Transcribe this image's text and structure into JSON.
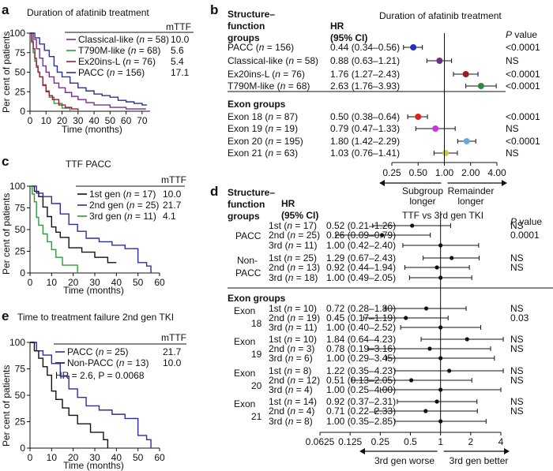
{
  "chart_data": [
    {
      "panel": "a",
      "type": "line",
      "title": "Duration of afatinib treatment",
      "xlabel": "Time (months)",
      "ylabel": "Per cent of patients",
      "xlim": [
        0,
        75
      ],
      "ylim": [
        0,
        100
      ],
      "xticks": [
        "0",
        "10",
        "20",
        "30",
        "40",
        "50",
        "60",
        "70"
      ],
      "yticks": [
        "0",
        "25",
        "50",
        "75",
        "100"
      ],
      "legend_header": "mTTF",
      "series": [
        {
          "name": "Classical-like",
          "n": "n = 58",
          "mttf": "10.0",
          "color": "#7b2d8e",
          "x": [
            0,
            2,
            4,
            6,
            8,
            10,
            12,
            15,
            18,
            22,
            26,
            30,
            35,
            40,
            50,
            60,
            72
          ],
          "y": [
            100,
            92,
            80,
            68,
            58,
            50,
            44,
            36,
            30,
            24,
            19,
            15,
            11,
            8,
            5,
            3,
            2
          ]
        },
        {
          "name": "T790M-like",
          "n": "n = 68",
          "mttf": "5.6",
          "color": "#2e9a3c",
          "x": [
            0,
            1,
            2,
            3,
            4,
            5,
            6,
            8,
            10,
            12,
            15,
            20,
            25
          ],
          "y": [
            100,
            88,
            75,
            64,
            56,
            50,
            44,
            34,
            26,
            18,
            10,
            4,
            0
          ]
        },
        {
          "name": "Ex20ins-L",
          "n": "n = 76",
          "mttf": "5.4",
          "color": "#9b1c3a",
          "x": [
            0,
            1,
            2,
            3,
            4,
            5,
            6,
            8,
            10,
            12,
            14,
            18,
            22,
            26,
            30
          ],
          "y": [
            100,
            90,
            80,
            68,
            58,
            50,
            44,
            33,
            25,
            20,
            15,
            8,
            5,
            3,
            1
          ]
        },
        {
          "name": "PACC",
          "n": "n = 156",
          "mttf": "17.1",
          "color": "#2b2f9c",
          "x": [
            0,
            3,
            6,
            9,
            12,
            15,
            17,
            20,
            25,
            30,
            35,
            40,
            45,
            50,
            55,
            60,
            65,
            70,
            73
          ],
          "y": [
            100,
            94,
            86,
            78,
            70,
            58,
            50,
            44,
            36,
            30,
            26,
            22,
            20,
            18,
            14,
            12,
            10,
            8,
            8
          ]
        }
      ]
    },
    {
      "panel": "b",
      "type": "forest",
      "title": "Duration of afatinib treatment",
      "col_group": "Structure–function groups",
      "col_hr": "HR (95% CI)",
      "col_p": "P value",
      "xscale": "log2",
      "xticks": [
        "0.25",
        "0.50",
        "1.00",
        "2.00",
        "4.00"
      ],
      "arrow_left": "Subgroup longer",
      "arrow_right": "Remainder longer",
      "section2": "Exon groups",
      "rows": [
        {
          "label": "PACC (n = 156)",
          "hr": "0.44 (0.34–0.56)",
          "p": "<0.0001",
          "est": 0.44,
          "lo": 0.34,
          "hi": 0.56,
          "color": "#2233bb"
        },
        {
          "label": "Classical-like (n = 58)",
          "hr": "0.88 (0.63–1.21)",
          "p": "NS",
          "est": 0.88,
          "lo": 0.63,
          "hi": 1.21,
          "color": "#6b2d8e"
        },
        {
          "label": "Ex20ins-L (n = 76)",
          "hr": "1.76 (1.27–2.43)",
          "p": "<0.0001",
          "est": 1.76,
          "lo": 1.27,
          "hi": 2.43,
          "color": "#9b1c1c"
        },
        {
          "label": "T790M-like (n = 68)",
          "hr": "2.63 (1.76–3.93)",
          "p": "<0.0001",
          "est": 2.63,
          "lo": 1.76,
          "hi": 3.93,
          "color": "#2e8b3c"
        },
        {
          "label": "Exon 18 (n = 87)",
          "hr": "0.50 (0.38–0.64)",
          "p": "<0.0001",
          "est": 0.5,
          "lo": 0.38,
          "hi": 0.64,
          "color": "#dd2222"
        },
        {
          "label": "Exon 19 (n = 19)",
          "hr": "0.79 (0.47–1.33)",
          "p": "NS",
          "est": 0.79,
          "lo": 0.47,
          "hi": 1.33,
          "color": "#cc33dd"
        },
        {
          "label": "Exon 20 (n = 195)",
          "hr": "1.80 (1.42–2.29)",
          "p": "<0.0001",
          "est": 1.8,
          "lo": 1.42,
          "hi": 2.29,
          "color": "#66aadd"
        },
        {
          "label": "Exon 21 (n = 63)",
          "hr": "1.03 (0.76–1.41)",
          "p": "NS",
          "est": 1.03,
          "lo": 0.76,
          "hi": 1.41,
          "color": "#cccc33"
        }
      ]
    },
    {
      "panel": "c",
      "type": "line",
      "title": "TTF PACC",
      "xlabel": "Time (months)",
      "ylabel": "Per cent of patients",
      "xlim": [
        0,
        60
      ],
      "ylim": [
        0,
        100
      ],
      "xticks": [
        "0",
        "10",
        "20",
        "30",
        "40",
        "50",
        "60"
      ],
      "yticks": [
        "0",
        "25",
        "50",
        "75",
        "100"
      ],
      "legend_header": "mTTF",
      "series": [
        {
          "name": "1st gen",
          "n": "n = 17",
          "mttf": "10.0",
          "color": "#111111",
          "x": [
            0,
            2,
            4,
            6,
            8,
            10,
            12,
            14,
            18,
            24,
            30,
            36,
            40
          ],
          "y": [
            100,
            94,
            88,
            76,
            65,
            53,
            47,
            41,
            29,
            24,
            18,
            12,
            12
          ]
        },
        {
          "name": "2nd gen",
          "n": "n = 25",
          "mttf": "21.7",
          "color": "#2b2f9c",
          "x": [
            0,
            3,
            6,
            10,
            14,
            18,
            22,
            26,
            32,
            38,
            44,
            50,
            54,
            56
          ],
          "y": [
            100,
            92,
            88,
            80,
            68,
            56,
            48,
            40,
            36,
            32,
            28,
            12,
            8,
            0
          ]
        },
        {
          "name": "3rd gen",
          "n": "n = 11",
          "mttf": "4.1",
          "color": "#2e9a3c",
          "x": [
            0,
            1,
            2,
            3,
            4,
            6,
            8,
            10,
            12,
            15,
            18,
            22
          ],
          "y": [
            100,
            91,
            82,
            64,
            55,
            45,
            36,
            27,
            18,
            9,
            9,
            0
          ]
        }
      ]
    },
    {
      "panel": "d",
      "type": "forest",
      "title": "TTF vs 3rd gen TKI",
      "col_group": "Structure–function groups",
      "col_hr": "HR (95% CI)",
      "col_p": "P value",
      "xscale": "log2",
      "xticks": [
        "0.0625",
        "0.125",
        "0.25",
        "0.5",
        "1",
        "2",
        "4"
      ],
      "arrow_left": "3rd gen worse",
      "arrow_right": "3rd gen better",
      "section2": "Exon groups",
      "groups": [
        {
          "label": "PACC",
          "rows": [
            {
              "label": "1st (n = 17)",
              "hr": "0.52 (0.21–1.26)",
              "p": "NS",
              "est": 0.52,
              "lo": 0.21,
              "hi": 1.26
            },
            {
              "label": "2nd (n = 25)",
              "hr": "0.26 (0.09–0.79)",
              "p": "0.0001",
              "est": 0.26,
              "lo": 0.09,
              "hi": 0.79
            },
            {
              "label": "3rd (n = 11)",
              "hr": "1.00 (0.42–2.40)",
              "p": "",
              "est": 1.0,
              "lo": 0.42,
              "hi": 2.4
            }
          ]
        },
        {
          "label": "Non-PACC",
          "rows": [
            {
              "label": "1st (n = 25)",
              "hr": "1.29 (0.67–2.43)",
              "p": "NS",
              "est": 1.29,
              "lo": 0.67,
              "hi": 2.43
            },
            {
              "label": "2nd (n = 13)",
              "hr": "0.92 (0.44–1.94)",
              "p": "NS",
              "est": 0.92,
              "lo": 0.44,
              "hi": 1.94
            },
            {
              "label": "3rd (n = 18)",
              "hr": "1.00 (0.49–2.05)",
              "p": "",
              "est": 1.0,
              "lo": 0.49,
              "hi": 2.05
            }
          ]
        },
        {
          "label": "Exon 18",
          "rows": [
            {
              "label": "1st (n = 10)",
              "hr": "0.72 (0.28–1.80)",
              "p": "NS",
              "est": 0.72,
              "lo": 0.28,
              "hi": 1.8
            },
            {
              "label": "2nd (n = 19)",
              "hr": "0.45 (0.17–1.19)",
              "p": "0.03",
              "est": 0.45,
              "lo": 0.17,
              "hi": 1.19
            },
            {
              "label": "3rd (n = 11)",
              "hr": "1.00 (0.40–2.52)",
              "p": "",
              "est": 1.0,
              "lo": 0.4,
              "hi": 2.52
            }
          ]
        },
        {
          "label": "Exon 19",
          "rows": [
            {
              "label": "1st (n = 10)",
              "hr": "1.84 (0.64–4.23)",
              "p": "NS",
              "est": 1.84,
              "lo": 0.64,
              "hi": 4.23
            },
            {
              "label": "2nd (n = 3)",
              "hr": "0.78 (0.19–3.16)",
              "p": "NS",
              "est": 0.78,
              "lo": 0.19,
              "hi": 3.16
            },
            {
              "label": "3rd (n = 6)",
              "hr": "1.00 (0.29–3.45)",
              "p": "",
              "est": 1.0,
              "lo": 0.29,
              "hi": 3.45
            }
          ]
        },
        {
          "label": "Exon 20",
          "rows": [
            {
              "label": "1st (n = 8)",
              "hr": "1.22 (0.35–4.23)",
              "p": "NS",
              "est": 1.22,
              "lo": 0.35,
              "hi": 4.23
            },
            {
              "label": "2nd (n = 12)",
              "hr": "0.51 (0.13–2.05)",
              "p": "NS",
              "est": 0.51,
              "lo": 0.13,
              "hi": 2.05
            },
            {
              "label": "3rd (n = 4)",
              "hr": "1.00 (0.25–4.00)",
              "p": "",
              "est": 1.0,
              "lo": 0.25,
              "hi": 4.0
            }
          ]
        },
        {
          "label": "Exon 21",
          "rows": [
            {
              "label": "1st (n = 14)",
              "hr": "0.92 (0.37–2.31)",
              "p": "NS",
              "est": 0.92,
              "lo": 0.37,
              "hi": 2.31
            },
            {
              "label": "2nd (n = 4)",
              "hr": "0.71 (0.22–2.33)",
              "p": "NS",
              "est": 0.71,
              "lo": 0.22,
              "hi": 2.33
            },
            {
              "label": "3rd (n = 8)",
              "hr": "1.00 (0.35–2.85)",
              "p": "",
              "est": 1.0,
              "lo": 0.35,
              "hi": 2.85
            }
          ]
        }
      ]
    },
    {
      "panel": "e",
      "type": "line",
      "title": "Time to treatment failure 2nd gen TKI",
      "xlabel": "Time (months)",
      "ylabel": "Per cent of patients",
      "xlim": [
        0,
        60
      ],
      "ylim": [
        0,
        100
      ],
      "xticks": [
        "0",
        "10",
        "20",
        "30",
        "40",
        "50",
        "60"
      ],
      "yticks": [
        "0",
        "25",
        "50",
        "75",
        "100"
      ],
      "legend_header": "mTTF",
      "annotation": "HR = 2.6, P = 0.0068",
      "series": [
        {
          "name": "PACC",
          "n": "n = 25",
          "mttf": "21.7",
          "color": "#2b2f9c",
          "x": [
            0,
            3,
            6,
            10,
            14,
            18,
            22,
            26,
            32,
            38,
            44,
            50,
            54,
            56
          ],
          "y": [
            100,
            92,
            88,
            80,
            68,
            56,
            48,
            40,
            36,
            32,
            28,
            12,
            8,
            0
          ]
        },
        {
          "name": "Non-PACC",
          "n": "n = 13",
          "mttf": "10.0",
          "color": "#111111",
          "x": [
            0,
            2,
            4,
            6,
            8,
            10,
            12,
            15,
            18,
            22,
            28,
            34,
            36
          ],
          "y": [
            100,
            92,
            85,
            77,
            69,
            54,
            46,
            38,
            31,
            23,
            15,
            8,
            0
          ]
        }
      ]
    }
  ]
}
